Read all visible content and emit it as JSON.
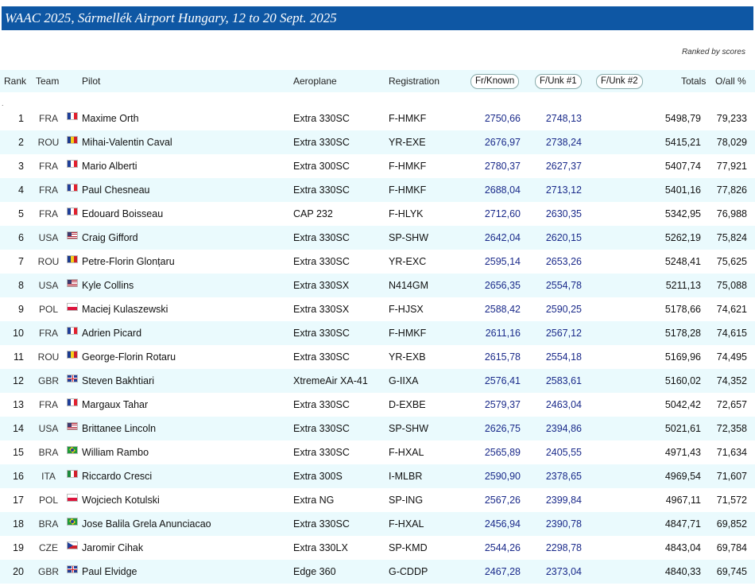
{
  "title": "WAAC 2025, Sármellék Airport Hungary, 12 to 20 Sept. 2025",
  "ranked_note": "Ranked by scores",
  "columns": {
    "rank": "Rank",
    "team": "Team",
    "pilot": "Pilot",
    "aeroplane": "Aeroplane",
    "registration": "Registration",
    "fr_known": "Fr/Known",
    "f_unk1": "F/Unk #1",
    "f_unk2": "F/Unk #2",
    "totals": "Totals",
    "overall": "O/all %"
  },
  "marker": ".",
  "rows": [
    {
      "rank": "1",
      "team": "FRA",
      "flag": "FRA",
      "pilot": "Maxime Orth",
      "aeroplane": "Extra 330SC",
      "registration": "F-HMKF",
      "fr_known": "2750,66",
      "f_unk1": "2748,13",
      "totals": "5498,79",
      "overall": "79,233"
    },
    {
      "rank": "2",
      "team": "ROU",
      "flag": "ROU",
      "pilot": "Mihai-Valentin Caval",
      "aeroplane": "Extra 330SC",
      "registration": "YR-EXE",
      "fr_known": "2676,97",
      "f_unk1": "2738,24",
      "totals": "5415,21",
      "overall": "78,029"
    },
    {
      "rank": "3",
      "team": "FRA",
      "flag": "FRA",
      "pilot": "Mario Alberti",
      "aeroplane": "Extra 300SC",
      "registration": "F-HMKF",
      "fr_known": "2780,37",
      "f_unk1": "2627,37",
      "totals": "5407,74",
      "overall": "77,921"
    },
    {
      "rank": "4",
      "team": "FRA",
      "flag": "FRA",
      "pilot": "Paul Chesneau",
      "aeroplane": "Extra 330SC",
      "registration": "F-HMKF",
      "fr_known": "2688,04",
      "f_unk1": "2713,12",
      "totals": "5401,16",
      "overall": "77,826"
    },
    {
      "rank": "5",
      "team": "FRA",
      "flag": "FRA",
      "pilot": "Edouard Boisseau",
      "aeroplane": "CAP 232",
      "registration": "F-HLYK",
      "fr_known": "2712,60",
      "f_unk1": "2630,35",
      "totals": "5342,95",
      "overall": "76,988"
    },
    {
      "rank": "6",
      "team": "USA",
      "flag": "USA",
      "pilot": "Craig Gifford",
      "aeroplane": "Extra 330SC",
      "registration": "SP-SHW",
      "fr_known": "2642,04",
      "f_unk1": "2620,15",
      "totals": "5262,19",
      "overall": "75,824"
    },
    {
      "rank": "7",
      "team": "ROU",
      "flag": "ROU",
      "pilot": "Petre-Florin Glonțaru",
      "aeroplane": "Extra 330SC",
      "registration": "YR-EXC",
      "fr_known": "2595,14",
      "f_unk1": "2653,26",
      "totals": "5248,41",
      "overall": "75,625"
    },
    {
      "rank": "8",
      "team": "USA",
      "flag": "USA",
      "pilot": "Kyle Collins",
      "aeroplane": "Extra 330SX",
      "registration": "N414GM",
      "fr_known": "2656,35",
      "f_unk1": "2554,78",
      "totals": "5211,13",
      "overall": "75,088"
    },
    {
      "rank": "9",
      "team": "POL",
      "flag": "POL",
      "pilot": "Maciej Kulaszewski",
      "aeroplane": "Extra 330SX",
      "registration": "F-HJSX",
      "fr_known": "2588,42",
      "f_unk1": "2590,25",
      "totals": "5178,66",
      "overall": "74,621"
    },
    {
      "rank": "10",
      "team": "FRA",
      "flag": "FRA",
      "pilot": "Adrien Picard",
      "aeroplane": "Extra 330SC",
      "registration": "F-HMKF",
      "fr_known": "2611,16",
      "f_unk1": "2567,12",
      "totals": "5178,28",
      "overall": "74,615"
    },
    {
      "rank": "11",
      "team": "ROU",
      "flag": "ROU",
      "pilot": "George-Florin Rotaru",
      "aeroplane": "Extra 330SC",
      "registration": "YR-EXB",
      "fr_known": "2615,78",
      "f_unk1": "2554,18",
      "totals": "5169,96",
      "overall": "74,495"
    },
    {
      "rank": "12",
      "team": "GBR",
      "flag": "GBR",
      "pilot": "Steven Bakhtiari",
      "aeroplane": "XtremeAir XA-41",
      "registration": "G-IIXA",
      "fr_known": "2576,41",
      "f_unk1": "2583,61",
      "totals": "5160,02",
      "overall": "74,352"
    },
    {
      "rank": "13",
      "team": "FRA",
      "flag": "FRA",
      "pilot": "Margaux Tahar",
      "aeroplane": "Extra 330SC",
      "registration": "D-EXBE",
      "fr_known": "2579,37",
      "f_unk1": "2463,04",
      "totals": "5042,42",
      "overall": "72,657"
    },
    {
      "rank": "14",
      "team": "USA",
      "flag": "USA",
      "pilot": "Brittanee Lincoln",
      "aeroplane": "Extra 330SC",
      "registration": "SP-SHW",
      "fr_known": "2626,75",
      "f_unk1": "2394,86",
      "totals": "5021,61",
      "overall": "72,358"
    },
    {
      "rank": "15",
      "team": "BRA",
      "flag": "BRA",
      "pilot": "William Rambo",
      "aeroplane": "Extra 330SC",
      "registration": "F-HXAL",
      "fr_known": "2565,89",
      "f_unk1": "2405,55",
      "totals": "4971,43",
      "overall": "71,634"
    },
    {
      "rank": "16",
      "team": "ITA",
      "flag": "ITA",
      "pilot": "Riccardo Cresci",
      "aeroplane": "Extra 300S",
      "registration": "I-MLBR",
      "fr_known": "2590,90",
      "f_unk1": "2378,65",
      "totals": "4969,54",
      "overall": "71,607"
    },
    {
      "rank": "17",
      "team": "POL",
      "flag": "POL",
      "pilot": "Wojciech Kotulski",
      "aeroplane": "Extra NG",
      "registration": "SP-ING",
      "fr_known": "2567,26",
      "f_unk1": "2399,84",
      "totals": "4967,11",
      "overall": "71,572"
    },
    {
      "rank": "18",
      "team": "BRA",
      "flag": "BRA",
      "pilot": "Jose Balila Grela Anunciacao",
      "aeroplane": "Extra 330SC",
      "registration": "F-HXAL",
      "fr_known": "2456,94",
      "f_unk1": "2390,78",
      "totals": "4847,71",
      "overall": "69,852"
    },
    {
      "rank": "19",
      "team": "CZE",
      "flag": "CZE",
      "pilot": "Jaromir Cihak",
      "aeroplane": "Extra 330LX",
      "registration": "SP-KMD",
      "fr_known": "2544,26",
      "f_unk1": "2298,78",
      "totals": "4843,04",
      "overall": "69,784"
    },
    {
      "rank": "20",
      "team": "GBR",
      "flag": "GBR",
      "pilot": "Paul Elvidge",
      "aeroplane": "Edge 360",
      "registration": "G-CDDP",
      "fr_known": "2467,28",
      "f_unk1": "2373,04",
      "totals": "4840,33",
      "overall": "69,745"
    }
  ],
  "colors": {
    "title_bar": "#0e57a4",
    "alt_row": "#eafafd",
    "score_text": "#1a2a8a"
  }
}
